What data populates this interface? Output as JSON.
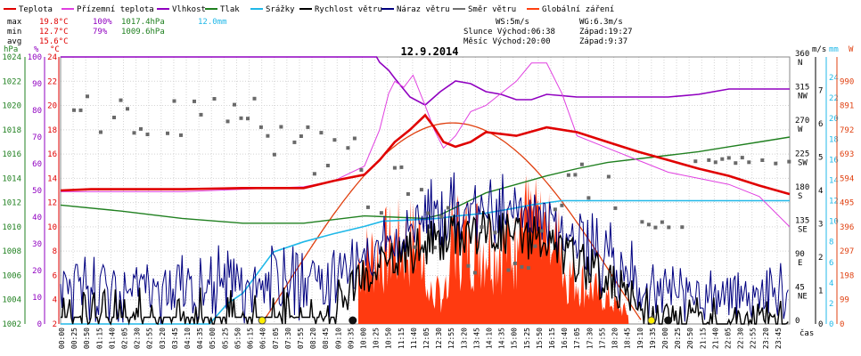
{
  "chart_data": {
    "type": "line",
    "title": "12.9.2014",
    "legend": [
      {
        "name": "Teplota",
        "color": "#e00000"
      },
      {
        "name": "Přízemní teplota",
        "color": "#e040e0"
      },
      {
        "name": "Vlhkost",
        "color": "#9000c0"
      },
      {
        "name": "Tlak",
        "color": "#208020"
      },
      {
        "name": "Srážky",
        "color": "#20b8e8"
      },
      {
        "name": "Rychlost větru",
        "color": "#000000"
      },
      {
        "name": "Náraz větru",
        "color": "#000080"
      },
      {
        "name": "Směr větru",
        "color": "#707070"
      },
      {
        "name": "Globální záření",
        "color": "#ff4010"
      }
    ],
    "stats": {
      "max_label": "max",
      "max_temp": "19.8°C",
      "max_hum": "100%",
      "max_press": "1017.4hPa",
      "max_rain": "12.0mm",
      "min_label": "min",
      "min_temp": "12.7°C",
      "min_hum": "79%",
      "min_press": "1009.6hPa",
      "avg_label": "avg",
      "avg_temp": "15.6°C"
    },
    "info": {
      "ws": "WS:5m/s",
      "wg": "WG:6.3m/s",
      "sun_rise": "Slunce Východ:06:38",
      "sun_set": "Západ:19:27",
      "moon_rise": "Měsíc Východ:20:00",
      "moon_set": "Západ:9:37"
    },
    "axis_units": {
      "hpa": "hPa",
      "pct": "%",
      "degc": "°C",
      "ms": "m/s",
      "mm": "mm",
      "w": "W",
      "time": "čas"
    },
    "axes": {
      "pressure": {
        "ylim": [
          1002,
          1024
        ],
        "ticks": [
          "1024",
          "1022",
          "1020",
          "1018",
          "1016",
          "1014",
          "1012",
          "1010",
          "1008",
          "1006",
          "1004",
          "1002"
        ]
      },
      "humidity": {
        "ylim": [
          0,
          100
        ],
        "ticks": [
          "100",
          "90",
          "80",
          "70",
          "60",
          "50",
          "40",
          "30",
          "20",
          "10",
          "0"
        ]
      },
      "temperature": {
        "ylim": [
          2,
          24
        ],
        "ticks": [
          "24",
          "22",
          "20",
          "18",
          "16",
          "14",
          "12",
          "10",
          "8",
          "6",
          "4",
          "2"
        ]
      },
      "direction": {
        "ylim": [
          0,
          360
        ],
        "ticks": [
          "360",
          "315",
          "270",
          "225",
          "180",
          "135",
          "90",
          "45",
          "0"
        ],
        "names": [
          "N",
          "NW",
          "W",
          "SW",
          "S",
          "SE",
          "E",
          "NE",
          ""
        ]
      },
      "wind": {
        "ylim": [
          0,
          8
        ],
        "ticks": [
          "7",
          "6",
          "5",
          "4",
          "3",
          "2",
          "1",
          "0"
        ]
      },
      "rain": {
        "ylim": [
          0,
          26
        ],
        "ticks": [
          "24",
          "22",
          "20",
          "18",
          "16",
          "14",
          "12",
          "10",
          "8",
          "6",
          "4",
          "2",
          "0"
        ]
      },
      "radiation": {
        "ylim": [
          0,
          1089
        ],
        "ticks": [
          "990",
          "891",
          "792",
          "693",
          "594",
          "495",
          "396",
          "297",
          "198",
          "99",
          "0"
        ]
      },
      "time_ticks": [
        "00:00",
        "00:25",
        "00:50",
        "01:15",
        "01:40",
        "02:05",
        "02:30",
        "02:55",
        "03:20",
        "03:45",
        "04:10",
        "04:35",
        "05:00",
        "05:25",
        "05:50",
        "06:15",
        "06:40",
        "07:05",
        "07:30",
        "07:55",
        "08:20",
        "08:45",
        "09:10",
        "09:35",
        "10:00",
        "10:25",
        "10:50",
        "11:15",
        "11:40",
        "12:05",
        "12:30",
        "12:55",
        "13:20",
        "13:45",
        "14:10",
        "14:35",
        "15:00",
        "15:25",
        "15:50",
        "16:15",
        "16:40",
        "17:05",
        "17:30",
        "17:55",
        "18:20",
        "18:45",
        "19:10",
        "19:35",
        "20:00",
        "20:25",
        "20:50",
        "21:15",
        "21:40",
        "22:05",
        "22:30",
        "22:55",
        "23:20",
        "23:45"
      ]
    },
    "series": [
      {
        "name": "Teplota",
        "unit": "°C",
        "x": [
          0,
          1,
          2,
          4,
          6,
          8,
          9,
          10,
          10.5,
          11,
          11.5,
          12,
          12.3,
          12.6,
          13,
          13.5,
          14,
          15,
          16,
          17,
          18,
          19,
          20,
          21,
          22,
          23,
          24
        ],
        "values": [
          13.0,
          13.1,
          13.1,
          13.1,
          13.2,
          13.2,
          13.8,
          14.3,
          15.5,
          17.0,
          18.0,
          19.2,
          18.2,
          17.0,
          16.6,
          17.0,
          17.8,
          17.5,
          18.2,
          17.8,
          17.0,
          16.2,
          15.5,
          14.8,
          14.2,
          13.4,
          12.7
        ]
      },
      {
        "name": "Přízemní teplota",
        "unit": "°C",
        "x": [
          0,
          2,
          4,
          6,
          8,
          9,
          10,
          10.5,
          10.8,
          11,
          11.3,
          11.6,
          12,
          12.3,
          12.6,
          13,
          13.5,
          14,
          14.5,
          15,
          15.5,
          16,
          16.5,
          17,
          18,
          19,
          20,
          21,
          22,
          23,
          24
        ],
        "values": [
          12.9,
          12.9,
          12.9,
          13.1,
          13.3,
          13.8,
          15.0,
          18.0,
          21.0,
          22.0,
          21.5,
          22.5,
          20.0,
          18.0,
          16.5,
          17.5,
          19.5,
          20.0,
          21.0,
          22.0,
          23.5,
          23.5,
          21.0,
          17.5,
          16.5,
          15.5,
          14.5,
          14.0,
          13.5,
          12.5,
          10.0
        ]
      },
      {
        "name": "Vlhkost",
        "unit": "%",
        "x": [
          0,
          10.4,
          10.5,
          10.8,
          11,
          11.5,
          12,
          12.5,
          13,
          13.5,
          14,
          14.5,
          15,
          15.5,
          16,
          17,
          18,
          19,
          20,
          21,
          22,
          23,
          24
        ],
        "values": [
          100,
          100,
          98,
          95,
          92,
          85,
          82,
          87,
          91,
          90,
          87,
          86,
          84,
          84,
          86,
          85,
          85,
          85,
          85,
          86,
          88,
          88,
          88
        ]
      },
      {
        "name": "Tlak",
        "unit": "hPa",
        "x": [
          0,
          2,
          4,
          6,
          8,
          9,
          10,
          11,
          12,
          12.5,
          13,
          13.5,
          14,
          15,
          16,
          17,
          18,
          19,
          20,
          21,
          22,
          23,
          24
        ],
        "values": [
          1011.8,
          1011.3,
          1010.7,
          1010.3,
          1010.3,
          1010.6,
          1010.9,
          1010.8,
          1010.7,
          1011.0,
          1011.6,
          1012.2,
          1012.8,
          1013.5,
          1014.2,
          1014.8,
          1015.3,
          1015.6,
          1015.9,
          1016.2,
          1016.6,
          1017.0,
          1017.4
        ]
      },
      {
        "name": "Srážky",
        "unit": "mm",
        "x": [
          0,
          4.9,
          5.5,
          6.0,
          6.5,
          7.0,
          8.0,
          9.0,
          10.0,
          10.6,
          12.0,
          12.5,
          13.0,
          14.0,
          14.8,
          15.5,
          16.5,
          17.0,
          24
        ],
        "values": [
          0,
          0,
          2.0,
          3.0,
          5.0,
          7.0,
          8.0,
          8.8,
          9.5,
          10.0,
          10.2,
          10.3,
          10.5,
          10.8,
          11.2,
          11.6,
          12.0,
          12.0,
          12.0
        ]
      },
      {
        "name": "Rychlost větru",
        "unit": "m/s"
      },
      {
        "name": "Náraz větru",
        "unit": "m/s"
      },
      {
        "name": "Směr větru",
        "unit": "°"
      },
      {
        "name": "Globální záření",
        "unit": "W/m2",
        "x": [
          6.6,
          7,
          8,
          9,
          10,
          11,
          12,
          12.5,
          13,
          13.5,
          14,
          14.5,
          15,
          15.5,
          16,
          16.5,
          17,
          17.5,
          18,
          18.5,
          19.2
        ],
        "values": [
          0,
          40,
          180,
          360,
          560,
          720,
          800,
          810,
          810,
          800,
          770,
          720,
          650,
          560,
          470,
          380,
          290,
          200,
          110,
          40,
          0
        ]
      }
    ],
    "markers": {
      "sunrise": "06:38",
      "sunset": "19:27",
      "moonrise": "20:00",
      "moonset": "09:37"
    },
    "grid": true
  }
}
